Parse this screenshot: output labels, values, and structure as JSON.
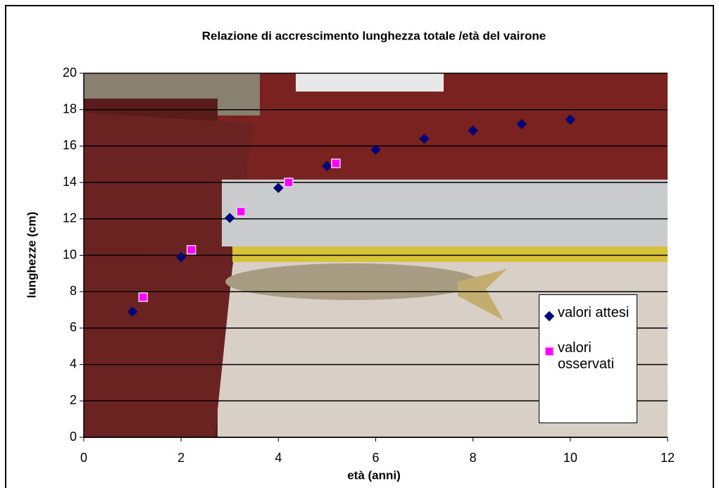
{
  "chart_data": {
    "type": "scatter",
    "title": "Relazione di accrescimento lunghezza totale /età del vairone",
    "x_label": "età (anni)",
    "y_label": "lunghezze (cm)",
    "xlim": [
      0,
      12
    ],
    "xticks": [
      0,
      2,
      4,
      6,
      8,
      10,
      12
    ],
    "ylim": [
      0,
      20
    ],
    "yticks": [
      0,
      2,
      4,
      6,
      8,
      10,
      12,
      14,
      16,
      18,
      20
    ],
    "grid": true,
    "series": [
      {
        "name": "valori attesi",
        "color": "#000080",
        "marker": "diamond",
        "x": [
          1,
          2,
          3,
          4,
          5,
          6,
          7,
          8,
          9,
          10
        ],
        "values": [
          6.9,
          9.9,
          12.05,
          13.7,
          14.9,
          15.8,
          16.4,
          16.85,
          17.2,
          17.45
        ]
      },
      {
        "name": "valori osservati",
        "color": "#ff00ff",
        "marker": "square",
        "x": [
          1.22,
          2.21,
          3.23,
          4.21,
          5.18
        ],
        "values": [
          7.7,
          10.3,
          12.4,
          14.0,
          15.05
        ]
      }
    ]
  }
}
